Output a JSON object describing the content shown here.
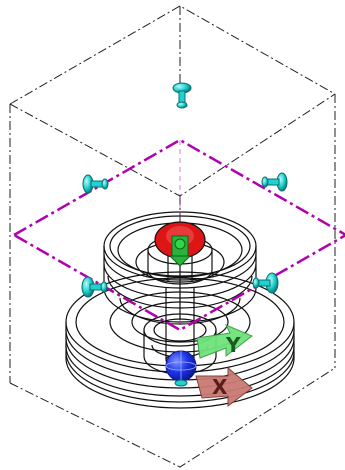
{
  "viewport": {
    "view_mode": "isometric-3d",
    "background": "#ffffff",
    "bounding_box_color": "#222222",
    "part_line_color": "#111111",
    "work_plane_color": "#b000b0",
    "work_plane_grip_color": "#1fd1cf",
    "work_plane_grip_dark": "#0a6f70"
  },
  "triad": {
    "origin_color": "#1a32e8",
    "z_arrow_color": "#28b43a",
    "z_head_color": "#de1515",
    "x_arrow_color": "#c97a74",
    "y_arrow_color": "#6fe37a",
    "x_label": "X",
    "y_label": "Y"
  }
}
